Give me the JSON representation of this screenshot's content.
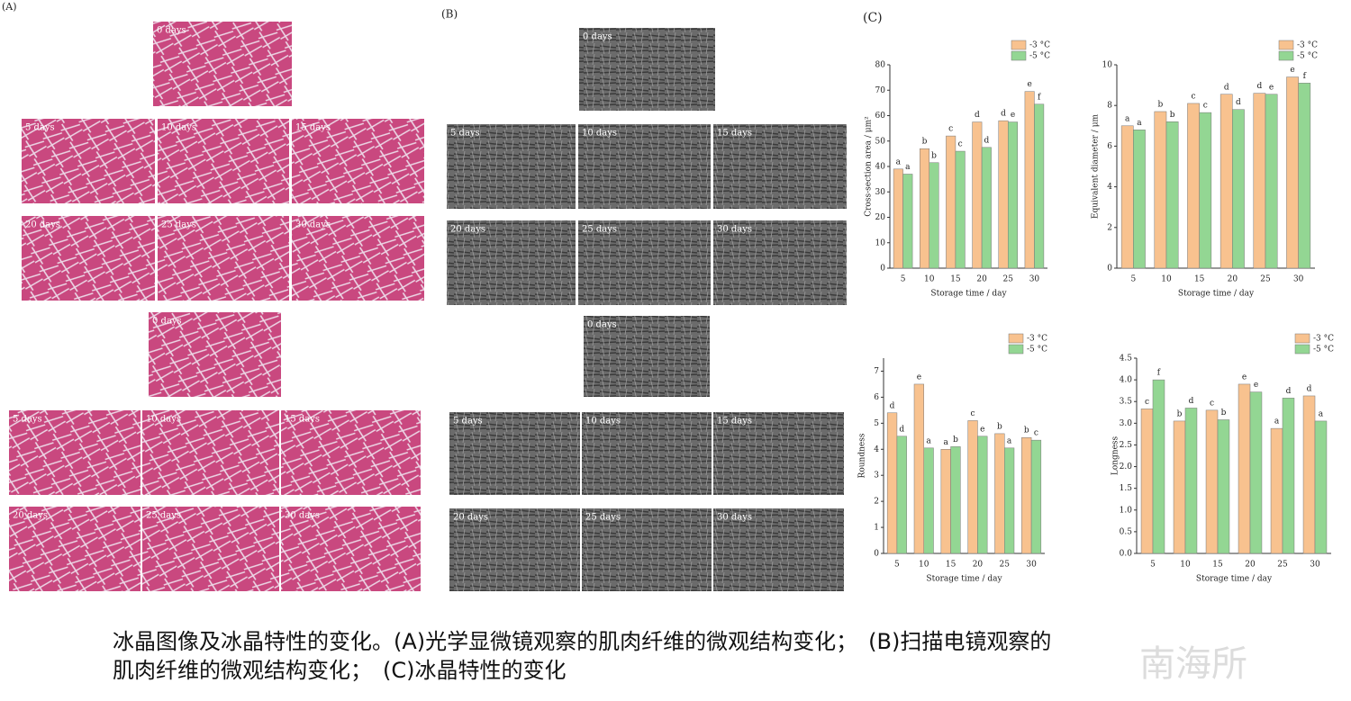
{
  "panel_labels": [
    "(A)",
    "(B)",
    "(C)"
  ],
  "micrograph_labels": [
    "0 days",
    "5 days",
    "10 days",
    "15 days",
    "20 days",
    "25 days",
    "30 days"
  ],
  "caption": [
    "冰晶图像及冰晶特性的变化。(A)光学显微镜观察的肌肉纤维的微观结构变化；　(B)扫描电镜观察的",
    "肌肉纤维的微观结构变化；　(C)冰晶特性的变化"
  ],
  "watermark": "南海所",
  "chart_data": [
    {
      "type": "bar",
      "x_label": "Storage time / day",
      "y_label": "Cross-section area / μm²",
      "categories": [
        "5",
        "10",
        "15",
        "20",
        "25",
        "30"
      ],
      "ylim": [
        0,
        80
      ],
      "yticks": [
        0,
        10,
        20,
        30,
        40,
        50,
        60,
        70,
        80
      ],
      "legend": "upper right",
      "series": [
        {
          "name": "-3 °C",
          "color": "#f8c28f",
          "values": [
            39,
            47,
            52,
            57.5,
            58,
            69.5
          ],
          "letters": [
            "a",
            "b",
            "c",
            "d",
            "d",
            "e"
          ]
        },
        {
          "name": "-5 °C",
          "color": "#93d693",
          "values": [
            37,
            41.5,
            46,
            47.5,
            57.5,
            64.5
          ],
          "letters": [
            "a",
            "b",
            "c",
            "d",
            "e",
            "f"
          ]
        }
      ]
    },
    {
      "type": "bar",
      "x_label": "Storage time / day",
      "y_label": "Equivalent diameter / μm",
      "categories": [
        "5",
        "10",
        "15",
        "20",
        "25",
        "30"
      ],
      "ylim": [
        0,
        10
      ],
      "yticks": [
        0,
        2,
        4,
        6,
        8,
        10
      ],
      "legend": "upper right",
      "series": [
        {
          "name": "-3 °C",
          "color": "#f8c28f",
          "values": [
            7.0,
            7.7,
            8.1,
            8.55,
            8.6,
            9.4
          ],
          "letters": [
            "a",
            "b",
            "c",
            "d",
            "d",
            "e"
          ]
        },
        {
          "name": "-5 °C",
          "color": "#93d693",
          "values": [
            6.8,
            7.2,
            7.65,
            7.8,
            8.55,
            9.1
          ],
          "letters": [
            "a",
            "b",
            "c",
            "d",
            "e",
            "f"
          ]
        }
      ]
    },
    {
      "type": "bar",
      "x_label": "Storage time / day",
      "y_label": "Roundness",
      "categories": [
        "5",
        "10",
        "15",
        "20",
        "25",
        "30"
      ],
      "ylim": [
        0,
        7.5
      ],
      "yticks": [
        0,
        1,
        2,
        3,
        4,
        5,
        6,
        7
      ],
      "legend": "upper right",
      "series": [
        {
          "name": "-3 °C",
          "color": "#f8c28f",
          "values": [
            5.4,
            6.5,
            4.0,
            5.1,
            4.6,
            4.45
          ],
          "letters": [
            "d",
            "e",
            "a",
            "c",
            "b",
            "b"
          ]
        },
        {
          "name": "-5 °C",
          "color": "#93d693",
          "values": [
            4.5,
            4.05,
            4.1,
            4.5,
            4.05,
            4.35
          ],
          "letters": [
            "d",
            "a",
            "b",
            "e",
            "a",
            "c"
          ]
        }
      ]
    },
    {
      "type": "bar",
      "x_label": "Storage time / day",
      "y_label": "Longness",
      "categories": [
        "5",
        "10",
        "15",
        "20",
        "25",
        "30"
      ],
      "ylim": [
        0,
        4.5
      ],
      "yticks": [
        {
          "value": 0,
          "label": "0.0"
        },
        0.5,
        {
          "value": 1,
          "label": "1.0"
        },
        1.5,
        {
          "value": 2,
          "label": "2.0"
        },
        2.5,
        {
          "value": 3,
          "label": "3.0"
        },
        3.5,
        {
          "value": 4,
          "label": "4.0"
        },
        4.5
      ],
      "legend": "upper right",
      "series": [
        {
          "name": "-3 °C",
          "color": "#f8c28f",
          "values": [
            3.33,
            3.05,
            3.3,
            3.9,
            2.88,
            3.63
          ],
          "letters": [
            "c",
            "b",
            "c",
            "e",
            "a",
            "d"
          ]
        },
        {
          "name": "-5 °C",
          "color": "#93d693",
          "values": [
            4.0,
            3.35,
            3.08,
            3.72,
            3.58,
            3.05
          ],
          "letters": [
            "f",
            "d",
            "b",
            "e",
            "d",
            "a"
          ]
        }
      ]
    }
  ]
}
